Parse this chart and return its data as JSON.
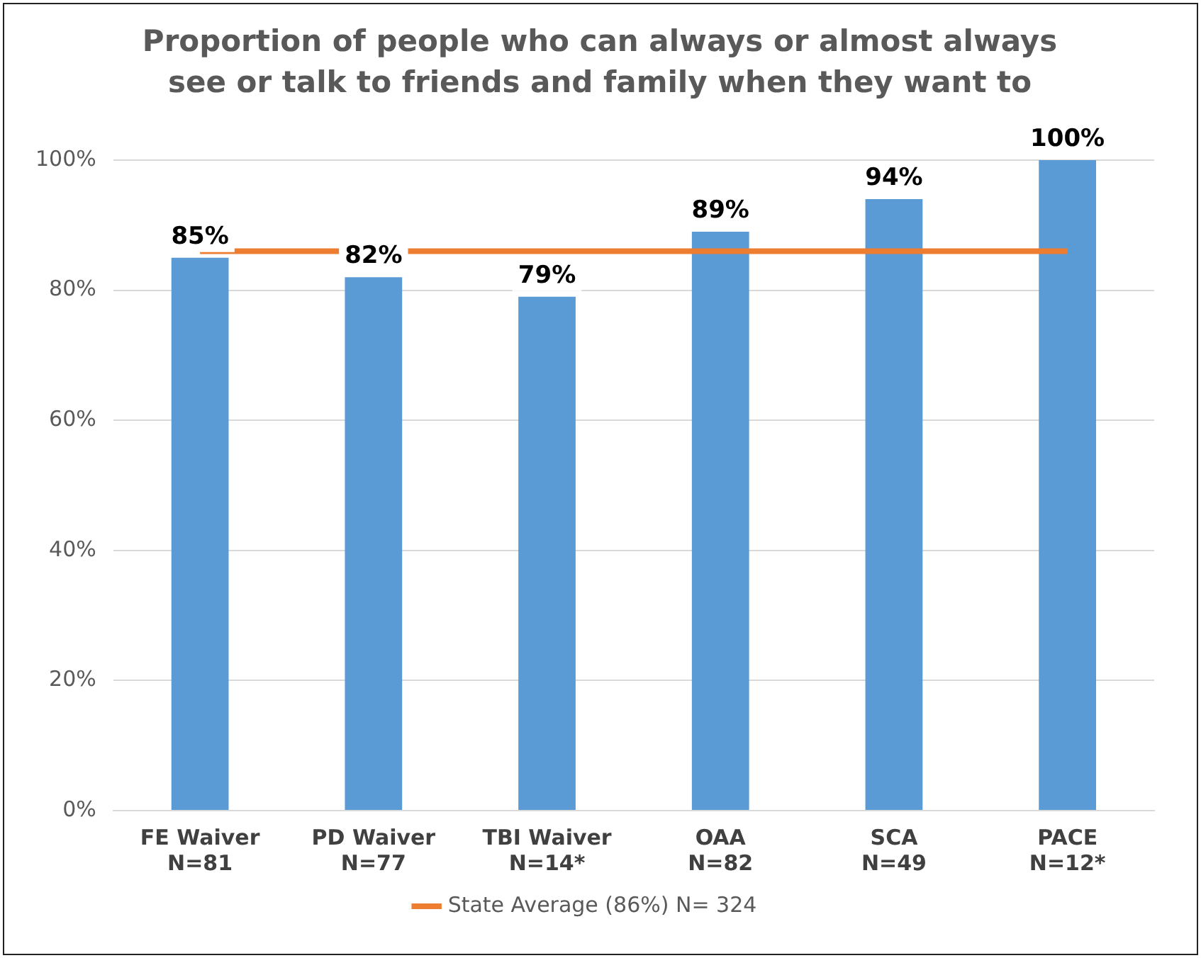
{
  "chart_data": {
    "type": "bar",
    "title": "Proportion of people who can always or almost always see or talk to friends and family when they want to",
    "categories": [
      "FE Waiver\nN=81",
      "PD Waiver\nN=77",
      "TBI Waiver\nN=14*",
      "OAA\nN=82",
      "SCA\nN=49",
      "PACE\nN=12*"
    ],
    "series": [
      {
        "color": "#5b9bd5",
        "values": [
          85,
          82,
          79,
          89,
          94,
          100
        ],
        "value_labels": [
          "85%",
          "82%",
          "79%",
          "89%",
          "94%",
          "100%"
        ]
      },
      {
        "type": "line",
        "name": "State Average (86%) N= 324",
        "color": "#ed7d31",
        "values": [
          86,
          null,
          86,
          86,
          86,
          86
        ]
      }
    ],
    "ylim": [
      0,
      100
    ],
    "yticks": [
      {
        "value": 0,
        "label": "0%"
      },
      {
        "value": 20,
        "label": "20%"
      },
      {
        "value": 40,
        "label": "40%"
      },
      {
        "value": 60,
        "label": "60%"
      },
      {
        "value": 80,
        "label": "80%"
      },
      {
        "value": 100,
        "label": "100%"
      }
    ],
    "grid": "y",
    "legend": "bottom",
    "marker": "none"
  }
}
